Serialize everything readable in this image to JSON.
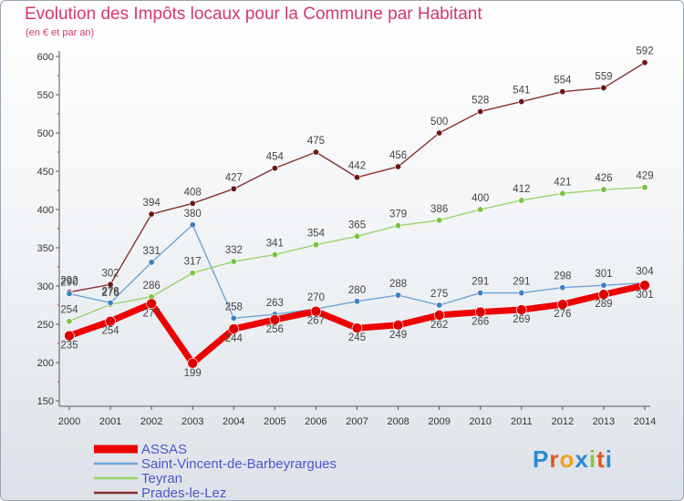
{
  "header": {
    "title": "Evolution des Impôts locaux pour la Commune par Habitant",
    "subtitle": "(en € et par an)"
  },
  "logo": {
    "text": "Proxiti",
    "colors": [
      "#2a8ad4",
      "#e05a1c",
      "#f2a21c",
      "#2a8ad4",
      "#8cc43c",
      "#e05a1c",
      "#2a8ad4"
    ]
  },
  "chart_data": {
    "type": "line",
    "title": "Evolution des Impôts locaux pour la Commune par Habitant",
    "subtitle": "(en € et par an)",
    "x": [
      2000,
      2001,
      2002,
      2003,
      2004,
      2005,
      2006,
      2007,
      2008,
      2009,
      2010,
      2011,
      2012,
      2013,
      2014
    ],
    "ylim": [
      150,
      600
    ],
    "yticks": [
      150,
      200,
      250,
      300,
      350,
      400,
      450,
      500,
      550,
      600
    ],
    "grid": false,
    "legend_position": "bottom-left",
    "series": [
      {
        "name": "ASSAS",
        "color": "#ee0000",
        "marker": "#dd0000",
        "width": 7,
        "label_offset": 14,
        "values": [
          235,
          254,
          277,
          199,
          244,
          256,
          267,
          245,
          249,
          262,
          266,
          269,
          276,
          289,
          301
        ]
      },
      {
        "name": "Saint-Vincent-de-Barbeyrargues",
        "color": "#6fa2d4",
        "marker": "#3d80c4",
        "width": 1.4,
        "label_offset": -9,
        "values": [
          290,
          278,
          331,
          380,
          258,
          263,
          270,
          280,
          288,
          275,
          291,
          291,
          298,
          301,
          304
        ]
      },
      {
        "name": "Teyran",
        "color": "#9ad46a",
        "marker": "#78c43e",
        "width": 1.4,
        "label_offset": -9,
        "values": [
          254,
          276,
          286,
          317,
          332,
          341,
          354,
          365,
          379,
          386,
          400,
          412,
          421,
          426,
          429
        ]
      },
      {
        "name": "Prades-le-Lez",
        "color": "#8a3030",
        "marker": "#6e1616",
        "width": 1.4,
        "label_offset": -9,
        "values": [
          292,
          302,
          394,
          408,
          427,
          454,
          475,
          442,
          456,
          500,
          528,
          541,
          554,
          559,
          592
        ]
      }
    ]
  }
}
